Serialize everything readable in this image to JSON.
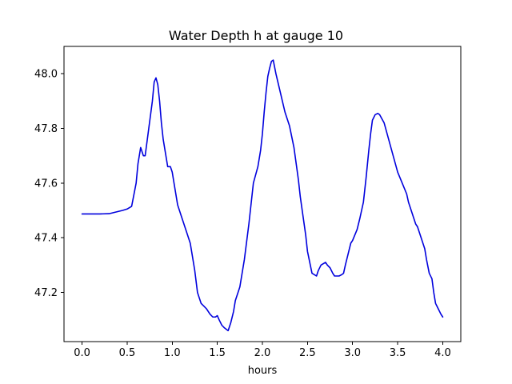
{
  "chart_data": {
    "type": "line",
    "title": "Water Depth h at gauge 10",
    "xlabel": "hours",
    "ylabel": "",
    "xlim": [
      -0.2,
      4.2
    ],
    "ylim": [
      47.02,
      48.1
    ],
    "grid": false,
    "legend": "none",
    "xticks": [
      0.0,
      0.5,
      1.0,
      1.5,
      2.0,
      2.5,
      3.0,
      3.5,
      4.0
    ],
    "xtick_labels": [
      "0.0",
      "0.5",
      "1.0",
      "1.5",
      "2.0",
      "2.5",
      "3.0",
      "3.5",
      "4.0"
    ],
    "yticks": [
      47.2,
      47.4,
      47.6,
      47.8,
      48.0
    ],
    "ytick_labels": [
      "47.2",
      "47.4",
      "47.6",
      "47.8",
      "48.0"
    ],
    "series": [
      {
        "color": "#0000dd",
        "x": [
          0.0,
          0.1,
          0.2,
          0.3,
          0.35,
          0.4,
          0.45,
          0.5,
          0.55,
          0.6,
          0.62,
          0.65,
          0.68,
          0.7,
          0.72,
          0.74,
          0.76,
          0.78,
          0.8,
          0.82,
          0.84,
          0.86,
          0.88,
          0.9,
          0.92,
          0.95,
          0.98,
          1.0,
          1.02,
          1.04,
          1.06,
          1.1,
          1.15,
          1.2,
          1.25,
          1.28,
          1.3,
          1.32,
          1.35,
          1.38,
          1.4,
          1.42,
          1.45,
          1.48,
          1.5,
          1.52,
          1.55,
          1.58,
          1.62,
          1.65,
          1.68,
          1.7,
          1.75,
          1.8,
          1.85,
          1.9,
          1.95,
          1.98,
          2.0,
          2.02,
          2.04,
          2.06,
          2.08,
          2.1,
          2.12,
          2.15,
          2.2,
          2.25,
          2.3,
          2.35,
          2.4,
          2.42,
          2.45,
          2.48,
          2.5,
          2.55,
          2.6,
          2.62,
          2.65,
          2.7,
          2.72,
          2.75,
          2.78,
          2.8,
          2.85,
          2.88,
          2.9,
          2.92,
          2.95,
          2.98,
          3.0,
          3.05,
          3.08,
          3.1,
          3.12,
          3.15,
          3.18,
          3.2,
          3.22,
          3.25,
          3.28,
          3.3,
          3.35,
          3.4,
          3.45,
          3.5,
          3.55,
          3.6,
          3.62,
          3.65,
          3.68,
          3.7,
          3.72,
          3.75,
          3.8,
          3.82,
          3.85,
          3.88,
          3.9,
          3.92,
          3.95,
          3.98,
          4.0
        ],
        "y": [
          47.487,
          47.487,
          47.487,
          47.488,
          47.492,
          47.496,
          47.5,
          47.505,
          47.515,
          47.6,
          47.67,
          47.73,
          47.7,
          47.7,
          47.75,
          47.8,
          47.85,
          47.9,
          47.97,
          47.985,
          47.96,
          47.9,
          47.82,
          47.76,
          47.72,
          47.66,
          47.66,
          47.64,
          47.6,
          47.56,
          47.52,
          47.48,
          47.43,
          47.38,
          47.28,
          47.2,
          47.18,
          47.16,
          47.15,
          47.14,
          47.13,
          47.12,
          47.11,
          47.11,
          47.115,
          47.1,
          47.08,
          47.07,
          47.06,
          47.09,
          47.13,
          47.17,
          47.22,
          47.32,
          47.45,
          47.6,
          47.66,
          47.72,
          47.78,
          47.86,
          47.93,
          47.99,
          48.02,
          48.045,
          48.05,
          48.0,
          47.93,
          47.86,
          47.81,
          47.73,
          47.61,
          47.55,
          47.48,
          47.41,
          47.35,
          47.27,
          47.26,
          47.28,
          47.3,
          47.31,
          47.3,
          47.29,
          47.27,
          47.26,
          47.26,
          47.265,
          47.27,
          47.3,
          47.34,
          47.38,
          47.39,
          47.43,
          47.47,
          47.5,
          47.53,
          47.62,
          47.72,
          47.78,
          47.83,
          47.85,
          47.855,
          47.85,
          47.82,
          47.76,
          47.7,
          47.64,
          47.6,
          47.56,
          47.53,
          47.5,
          47.47,
          47.45,
          47.44,
          47.41,
          47.36,
          47.32,
          47.27,
          47.25,
          47.2,
          47.16,
          47.14,
          47.12,
          47.11
        ]
      }
    ]
  }
}
